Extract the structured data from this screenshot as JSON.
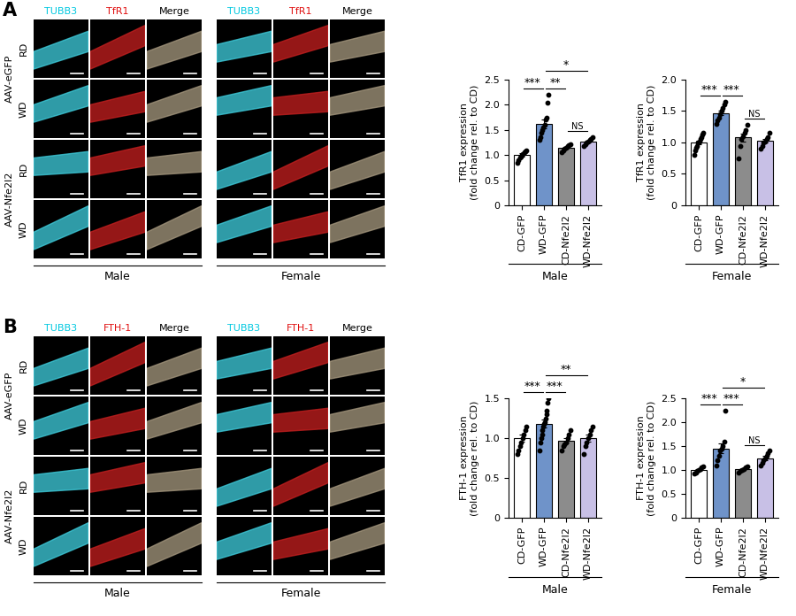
{
  "image_panels": [
    {
      "label": "A",
      "channels": [
        "TUBB3",
        "TfR1",
        "Merge"
      ],
      "groups": [
        "AAV-eGFP",
        "AAV-Nfe2l2"
      ],
      "diets": [
        "RD",
        "WD"
      ],
      "sexes": [
        "Male",
        "Female"
      ]
    },
    {
      "label": "B",
      "channels": [
        "TUBB3",
        "FTH-1",
        "Merge"
      ],
      "groups": [
        "AAV-eGFP",
        "AAV-Nfe2l2"
      ],
      "diets": [
        "RD",
        "WD"
      ],
      "sexes": [
        "Male",
        "Female"
      ]
    }
  ],
  "chart_data": [
    {
      "type": "bar",
      "ylabel": "TfR1 expression\n(fold change rel. to CD)",
      "xlabel": "Male",
      "categories": [
        "CD-GFP",
        "WD-GFP",
        "CD-Nfe2l2",
        "WD-Nfe2l2"
      ],
      "values": [
        1.0,
        1.62,
        1.15,
        1.27
      ],
      "errors": [
        0.03,
        0.09,
        0.02,
        0.02
      ],
      "points": [
        [
          0.85,
          0.9,
          0.95,
          0.97,
          1.0,
          1.02,
          1.05,
          1.08,
          1.1
        ],
        [
          1.3,
          1.35,
          1.45,
          1.5,
          1.55,
          1.6,
          1.7,
          1.75,
          2.05,
          2.2
        ],
        [
          1.05,
          1.1,
          1.12,
          1.15,
          1.18,
          1.2,
          1.22
        ],
        [
          1.18,
          1.22,
          1.25,
          1.27,
          1.3,
          1.32,
          1.35
        ]
      ],
      "colors": [
        "#ffffff",
        "#6f93c9",
        "#8c8c8c",
        "#c8c0e6"
      ],
      "ylim": [
        0,
        2.5
      ],
      "yticks": [
        0,
        0.5,
        {
          "value": 1,
          "label": "1.0"
        },
        1.5,
        {
          "value": 2,
          "label": "2.0"
        },
        2.5
      ],
      "significance": [
        {
          "from": "CD-GFP",
          "to": "WD-GFP",
          "label": "***"
        },
        {
          "from": "WD-GFP",
          "to": "CD-Nfe2l2",
          "label": "**"
        },
        {
          "from": "CD-Nfe2l2",
          "to": "WD-Nfe2l2",
          "label": "NS"
        },
        {
          "from": "WD-GFP",
          "to": "WD-Nfe2l2",
          "label": "*"
        }
      ]
    },
    {
      "type": "bar",
      "ylabel": "TfR1 expression\n(fold change rel. to CD)",
      "xlabel": "Female",
      "categories": [
        "CD-GFP",
        "WD-GFP",
        "CD-Nfe2l2",
        "WD-Nfe2l2"
      ],
      "values": [
        1.0,
        1.47,
        1.08,
        1.03
      ],
      "errors": [
        0.03,
        0.04,
        0.06,
        0.03
      ],
      "points": [
        [
          0.8,
          0.88,
          0.92,
          0.95,
          1.0,
          1.02,
          1.05,
          1.08,
          1.12,
          1.15
        ],
        [
          1.3,
          1.35,
          1.4,
          1.45,
          1.5,
          1.55,
          1.6,
          1.65
        ],
        [
          0.75,
          0.95,
          1.05,
          1.1,
          1.15,
          1.2,
          1.28
        ],
        [
          0.9,
          0.95,
          1.0,
          1.02,
          1.05,
          1.08,
          1.15
        ]
      ],
      "colors": [
        "#ffffff",
        "#6f93c9",
        "#8c8c8c",
        "#c8c0e6"
      ],
      "ylim": [
        0,
        2
      ],
      "yticks": [
        0,
        0.5,
        {
          "value": 1,
          "label": "1.0"
        },
        1.5,
        {
          "value": 2,
          "label": "2.0"
        }
      ],
      "significance": [
        {
          "from": "CD-GFP",
          "to": "WD-GFP",
          "label": "***"
        },
        {
          "from": "WD-GFP",
          "to": "CD-Nfe2l2",
          "label": "***"
        },
        {
          "from": "CD-Nfe2l2",
          "to": "WD-Nfe2l2",
          "label": "NS"
        }
      ]
    },
    {
      "type": "bar",
      "ylabel": "FTH-1 expression\n(fold change rel. to CD)",
      "xlabel": "Male",
      "categories": [
        "CD-GFP",
        "WD-GFP",
        "CD-Nfe2l2",
        "WD-Nfe2l2"
      ],
      "values": [
        1.0,
        1.18,
        0.97,
        1.0
      ],
      "errors": [
        0.04,
        0.05,
        0.03,
        0.04
      ],
      "points": [
        [
          0.8,
          0.85,
          0.9,
          0.95,
          1.0,
          1.05,
          1.1,
          1.15
        ],
        [
          0.85,
          0.95,
          1.0,
          1.05,
          1.1,
          1.15,
          1.18,
          1.2,
          1.25,
          1.3,
          1.35,
          1.45,
          1.5
        ],
        [
          0.85,
          0.9,
          0.92,
          0.95,
          1.0,
          1.05,
          1.1
        ],
        [
          0.8,
          0.9,
          0.95,
          1.0,
          1.05,
          1.1,
          1.15
        ]
      ],
      "colors": [
        "#ffffff",
        "#6f93c9",
        "#8c8c8c",
        "#c8c0e6"
      ],
      "ylim": [
        0,
        1.5
      ],
      "yticks": [
        0,
        0.5,
        {
          "value": 1,
          "label": "1.0"
        },
        1.5
      ],
      "significance": [
        {
          "from": "CD-GFP",
          "to": "WD-GFP",
          "label": "***"
        },
        {
          "from": "WD-GFP",
          "to": "CD-Nfe2l2",
          "label": "***"
        },
        {
          "from": "WD-GFP",
          "to": "WD-Nfe2l2",
          "label": "**"
        }
      ]
    },
    {
      "type": "bar",
      "ylabel": "FTH-1 expression\n(fold change rel. to CD)",
      "xlabel": "Female",
      "categories": [
        "CD-GFP",
        "WD-GFP",
        "CD-Nfe2l2",
        "WD-Nfe2l2"
      ],
      "values": [
        1.0,
        1.45,
        1.02,
        1.25
      ],
      "errors": [
        0.02,
        0.1,
        0.02,
        0.04
      ],
      "points": [
        [
          0.92,
          0.95,
          0.98,
          1.0,
          1.02,
          1.05,
          1.08
        ],
        [
          1.1,
          1.2,
          1.3,
          1.4,
          1.45,
          1.5,
          1.6,
          2.25
        ],
        [
          0.95,
          0.98,
          1.0,
          1.02,
          1.05,
          1.08
        ],
        [
          1.1,
          1.15,
          1.2,
          1.25,
          1.3,
          1.35,
          1.4
        ]
      ],
      "colors": [
        "#ffffff",
        "#6f93c9",
        "#8c8c8c",
        "#c8c0e6"
      ],
      "ylim": [
        0,
        2.5
      ],
      "yticks": [
        0,
        0.5,
        {
          "value": 1,
          "label": "1.0"
        },
        1.5,
        {
          "value": 2,
          "label": "2.0"
        },
        2.5
      ],
      "significance": [
        {
          "from": "CD-GFP",
          "to": "WD-GFP",
          "label": "***"
        },
        {
          "from": "WD-GFP",
          "to": "CD-Nfe2l2",
          "label": "***"
        },
        {
          "from": "CD-Nfe2l2",
          "to": "WD-Nfe2l2",
          "label": "NS"
        },
        {
          "from": "WD-GFP",
          "to": "WD-Nfe2l2",
          "label": "*"
        }
      ]
    }
  ]
}
